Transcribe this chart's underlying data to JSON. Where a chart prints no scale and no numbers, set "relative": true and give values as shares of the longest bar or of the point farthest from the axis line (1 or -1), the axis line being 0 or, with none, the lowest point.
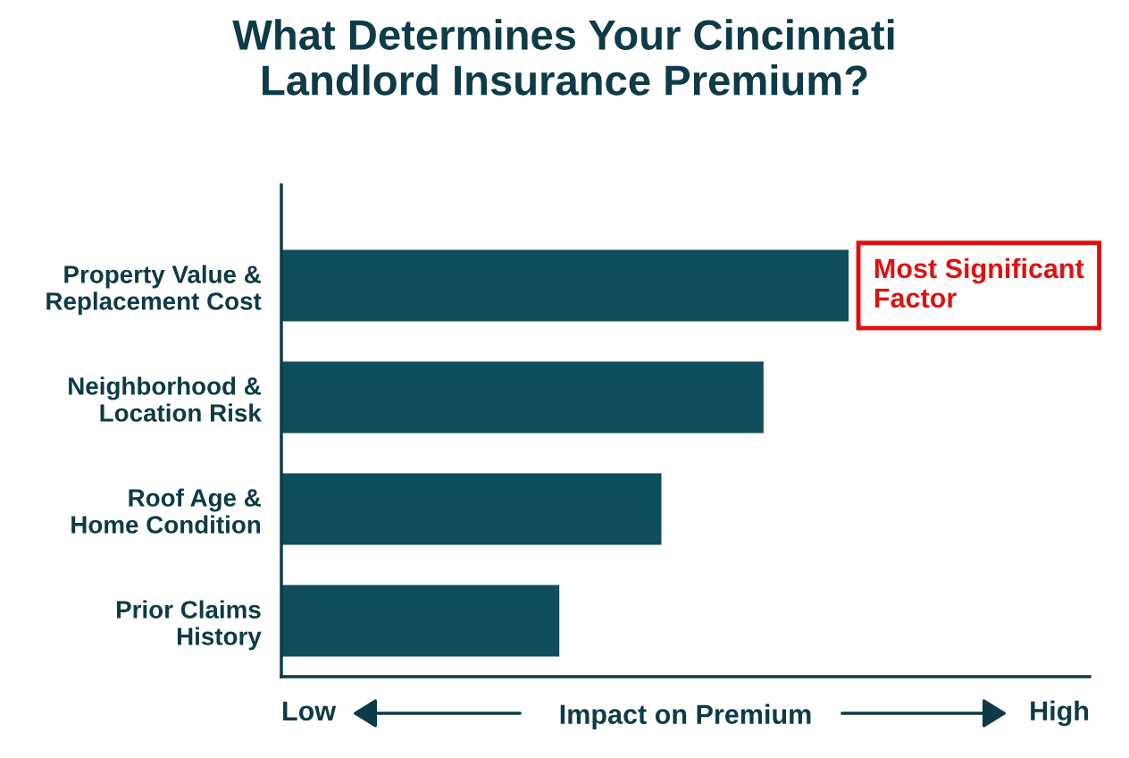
{
  "chart_data": {
    "type": "bar",
    "orientation": "horizontal",
    "relative": true,
    "title": "What Determines Your Cincinnati\nLandlord Insurance Premium?",
    "xlabel": "Impact on Premium",
    "categories": [
      "Property Value &\nReplacement Cost",
      "Neighborhood &\nLocation Risk",
      "Roof Age &\nHome Condition",
      "Prior Claims\nHistory"
    ],
    "values": [
      1,
      0.85,
      0.67,
      0.49
    ],
    "color": "#0f4c5c",
    "grid": false,
    "legend": false,
    "annotations": [
      {
        "text": "Most Significant\nFactor",
        "x": 1,
        "y": "Property Value &\nReplacement Cost"
      },
      "Low",
      "High"
    ]
  }
}
